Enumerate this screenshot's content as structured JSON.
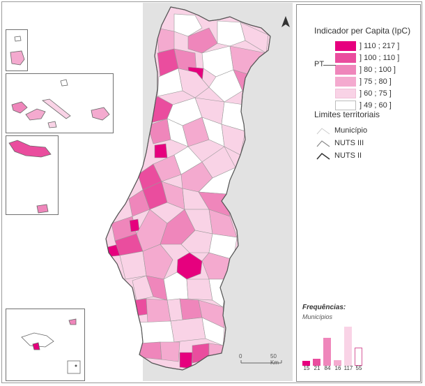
{
  "legend": {
    "title": "Indicador per Capita (IpC)",
    "pt_label": "PT",
    "classes": [
      {
        "label": "] 110 ; 217 ]",
        "color": "#e6007e"
      },
      {
        "label": "] 100 ; 110 ]",
        "color": "#ea4d9e"
      },
      {
        "label": "] 80 ; 100 ]",
        "color": "#ef86bb"
      },
      {
        "label": "] 75 ; 80 ]",
        "color": "#f4aacf"
      },
      {
        "label": "] 60 ; 75 ]",
        "color": "#f9d3e6"
      },
      {
        "label": "] 49 ; 60 ]",
        "color": "#ffffff"
      }
    ]
  },
  "limits": {
    "title": "Limites territoriais",
    "items": [
      {
        "label": "Município"
      },
      {
        "label": "NUTS III"
      },
      {
        "label": "NUTS II"
      }
    ]
  },
  "frequencies": {
    "title": "Frequências:",
    "subtitle": "Municípios",
    "counts": [
      15,
      21,
      84,
      16,
      117,
      55
    ],
    "count_labels": [
      "15",
      "21",
      "84",
      "16",
      "117",
      "55"
    ]
  },
  "scale": {
    "zero": "0",
    "label": "50 Km"
  },
  "north": {
    "label": "N"
  }
}
